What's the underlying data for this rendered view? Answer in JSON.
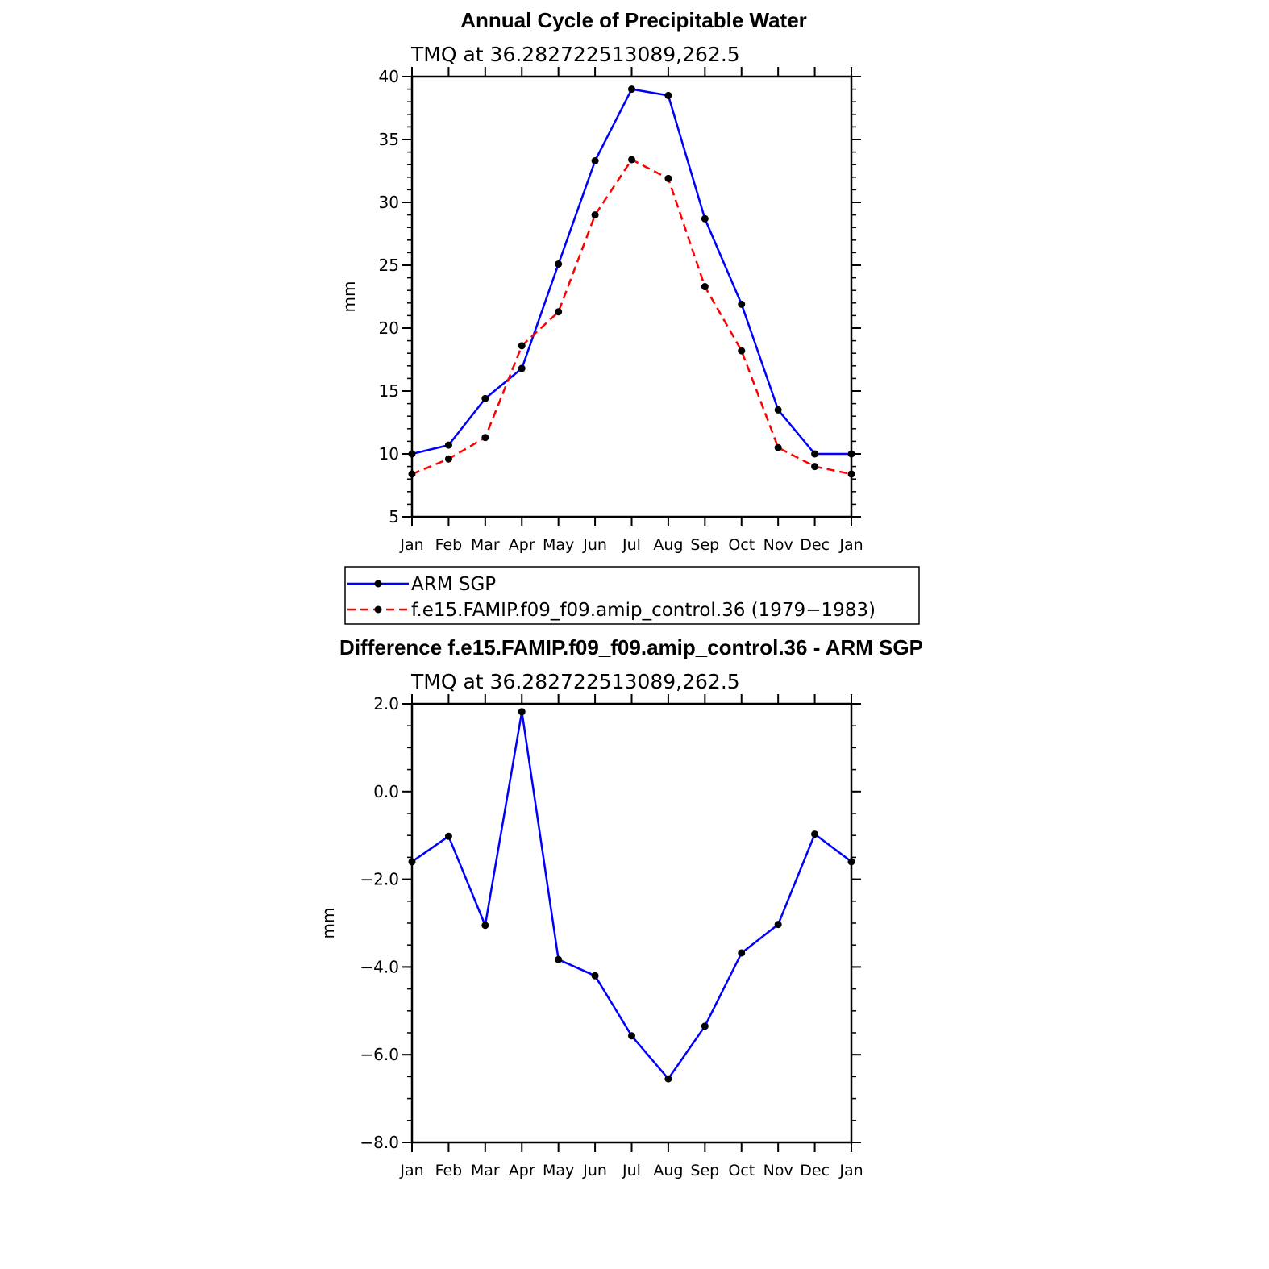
{
  "chart_data": [
    {
      "type": "line",
      "title": "Annual Cycle of Precipitable Water",
      "subtitle": "TMQ at 36.282722513089,262.5",
      "xlabel": "",
      "ylabel": "mm",
      "categories": [
        "Jan",
        "Feb",
        "Mar",
        "Apr",
        "May",
        "Jun",
        "Jul",
        "Aug",
        "Sep",
        "Oct",
        "Nov",
        "Dec",
        "Jan"
      ],
      "yticks": [
        "5",
        "10",
        "15",
        "20",
        "25",
        "30",
        "35",
        "40"
      ],
      "ylim": [
        5,
        40
      ],
      "series": [
        {
          "name": "ARM SGP",
          "color": "#0000ff",
          "dash": "solid",
          "values": [
            10.0,
            10.7,
            14.4,
            16.8,
            25.1,
            33.3,
            39.0,
            38.5,
            28.7,
            21.9,
            13.5,
            10.0,
            10.0
          ]
        },
        {
          "name": "f.e15.FAMIP.f09_f09.amip_control.36 (1979−1983)",
          "color": "#ff0000",
          "dash": "dashed",
          "values": [
            8.4,
            9.6,
            11.3,
            18.6,
            21.3,
            29.0,
            33.4,
            31.9,
            23.3,
            18.2,
            10.5,
            9.0,
            8.4
          ]
        }
      ],
      "legend": "below"
    },
    {
      "type": "line",
      "title": "Difference f.e15.FAMIP.f09_f09.amip_control.36 - ARM SGP",
      "subtitle": "TMQ at 36.282722513089,262.5",
      "xlabel": "",
      "ylabel": "mm",
      "categories": [
        "Jan",
        "Feb",
        "Mar",
        "Apr",
        "May",
        "Jun",
        "Jul",
        "Aug",
        "Sep",
        "Oct",
        "Nov",
        "Dec",
        "Jan"
      ],
      "yticks": [
        "−8.0",
        "−6.0",
        "−4.0",
        "−2.0",
        "0.0",
        "2.0"
      ],
      "ylim": [
        -8,
        2
      ],
      "series": [
        {
          "name": "Difference",
          "color": "#0000ff",
          "dash": "solid",
          "values": [
            -1.6,
            -1.02,
            -3.05,
            1.82,
            -3.83,
            -4.2,
            -5.57,
            -6.55,
            -5.35,
            -3.68,
            -3.03,
            -0.97,
            -1.6
          ]
        }
      ]
    }
  ]
}
